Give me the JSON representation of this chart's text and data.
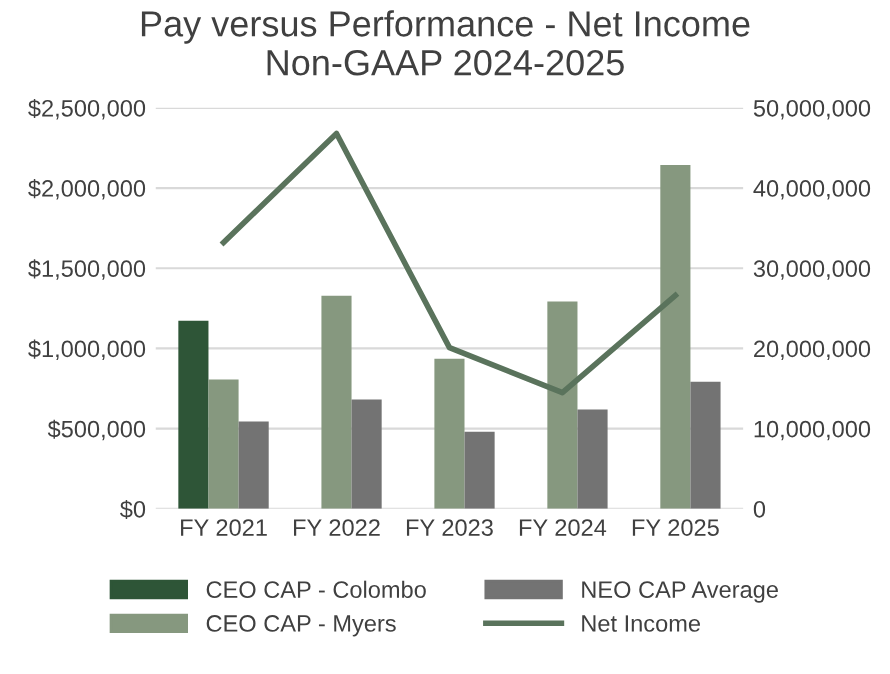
{
  "chart_data": {
    "type": "bar",
    "title": "Pay versus Performance - Net Income\nNon-GAAP 2024-2025",
    "categories": [
      "FY 2021",
      "FY 2022",
      "FY 2023",
      "FY 2024",
      "FY 2025"
    ],
    "series": [
      {
        "name": "CEO CAP - Colombo",
        "color": "#2e5537",
        "values": [
          1172000,
          null,
          null,
          null,
          null
        ]
      },
      {
        "name": "CEO CAP - Myers",
        "color": "#86987f",
        "values": [
          807000,
          1328000,
          936000,
          1292000,
          2143000
        ]
      },
      {
        "name": "NEO CAP Average",
        "color": "#737373",
        "values": [
          544000,
          682000,
          481000,
          619000,
          793000
        ]
      },
      {
        "name": "Net Income",
        "color": "#5a735c",
        "type": "line",
        "axis": "y2",
        "values": [
          33200000,
          46800000,
          20100000,
          14500000,
          26600000
        ]
      }
    ],
    "ylim": [
      0,
      2500000
    ],
    "yticks": [
      {
        "value": 0,
        "label": "$0"
      },
      {
        "value": 500000,
        "label": "$500,000"
      },
      {
        "value": 1000000,
        "label": "$1,000,000"
      },
      {
        "value": 1500000,
        "label": "$1,500,000"
      },
      {
        "value": 2000000,
        "label": "$2,000,000"
      },
      {
        "value": 2500000,
        "label": "$2,500,000"
      }
    ],
    "y2lim": [
      0,
      50000000
    ],
    "y2ticks": [
      {
        "value": 0,
        "label": "0"
      },
      {
        "value": 10000000,
        "label": "10,000,000"
      },
      {
        "value": 20000000,
        "label": "20,000,000"
      },
      {
        "value": 30000000,
        "label": "30,000,000"
      },
      {
        "value": 40000000,
        "label": "40,000,000"
      },
      {
        "value": 50000000,
        "label": "50,000,000"
      }
    ],
    "grid": "y",
    "legend": "bottom"
  }
}
